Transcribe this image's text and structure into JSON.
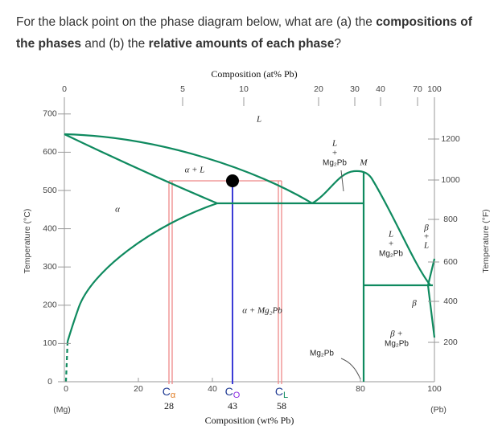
{
  "question": {
    "parts": [
      "For the black point on the phase diagram below, what are (a) the ",
      "compositions of the phases",
      " and (b) the ",
      "relative amounts of each phase",
      "?"
    ]
  },
  "diagram": {
    "top_axis": {
      "title": "Composition (at% Pb)",
      "ticks": [
        "0",
        "5",
        "10",
        "20",
        "30",
        "40",
        "70",
        "100"
      ]
    },
    "bottom_axis": {
      "title": "Composition (wt% Pb)",
      "ticks": [
        "0",
        "20",
        "40",
        "80",
        "100"
      ],
      "left_end": "(Mg)",
      "right_end": "(Pb)"
    },
    "left_axis": {
      "title": "Temperature (°C)",
      "ticks": [
        "0",
        "100",
        "200",
        "300",
        "400",
        "500",
        "600",
        "700"
      ]
    },
    "right_axis": {
      "title": "Temperature (°F)",
      "ticks": [
        "200",
        "400",
        "600",
        "800",
        "1000",
        "1200"
      ]
    },
    "markers": [
      {
        "symbol": "C",
        "sub": "α",
        "value": "28"
      },
      {
        "symbol": "C",
        "sub": "O",
        "value": "43"
      },
      {
        "symbol": "C",
        "sub": "L",
        "value": "58"
      }
    ],
    "regions": [
      {
        "lines": [
          "L"
        ]
      },
      {
        "lines": [
          "α + L"
        ]
      },
      {
        "lines": [
          "α"
        ]
      },
      {
        "lines": [
          "L",
          "+",
          "Mg₂Pb"
        ]
      },
      {
        "lines": [
          "M"
        ]
      },
      {
        "lines": [
          "α + Mg₂Pb"
        ]
      },
      {
        "lines": [
          "Mg₂Pb"
        ]
      },
      {
        "lines": [
          "L",
          "+",
          "Mg₂Pb"
        ]
      },
      {
        "lines": [
          "β",
          "+",
          "L"
        ]
      },
      {
        "lines": [
          "β"
        ]
      },
      {
        "lines": [
          "β +",
          "Mg₂Pb"
        ]
      }
    ]
  }
}
